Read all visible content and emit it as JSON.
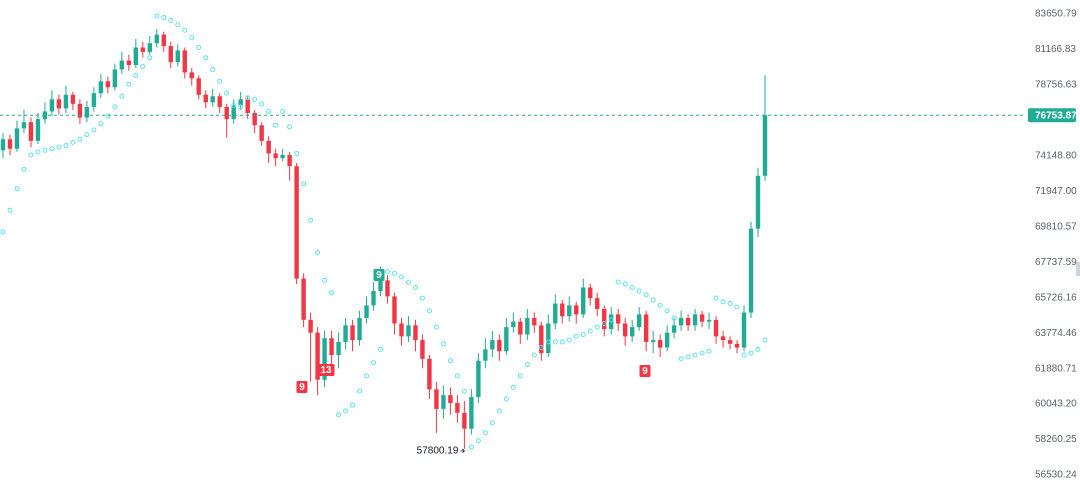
{
  "chart_data": {
    "type": "candlestick",
    "log_y": true,
    "grid": false,
    "up_color": "#22ab94",
    "down_color": "#f23645",
    "sar_color": "#5fe3ea",
    "ylim": [
      56052,
      84652
    ],
    "yticks": [
      83650.79,
      81166.83,
      78756.63,
      {
        "value": 74148.8,
        "label": "74148.80"
      },
      {
        "value": 71947,
        "label": "71947.00"
      },
      69810.57,
      67737.59,
      65726.16,
      63774.46,
      61880.71,
      {
        "value": 60043.2,
        "label": "60043.20"
      },
      58260.25,
      56530.24
    ],
    "open": [
      74500,
      75200,
      74600,
      75900,
      76300,
      75100,
      76500,
      77000,
      77800,
      77200,
      78100,
      77500,
      76600,
      77300,
      78200,
      79000,
      78600,
      79800,
      80400,
      80100,
      81300,
      81000,
      81600,
      82200,
      81400,
      80300,
      81100,
      79600,
      79200,
      78100,
      77600,
      78000,
      77300,
      76500,
      77400,
      77800,
      76900,
      76100,
      75100,
      74300,
      74000,
      74200,
      73500,
      66800,
      64500,
      63800,
      61300,
      63500,
      62600,
      63300,
      64200,
      63400,
      64600,
      65300,
      66100,
      66700,
      65800,
      64300,
      63600,
      64200,
      63400,
      62400,
      60800,
      59800,
      60500,
      60100,
      59600,
      58800,
      60400,
      62300,
      62900,
      63400,
      62800,
      64100,
      64400,
      63700,
      64600,
      64200,
      62700,
      64300,
      65400,
      64700,
      65300,
      64800,
      66300,
      65700,
      65100,
      64000,
      64800,
      64300,
      63600,
      64100,
      64800,
      63300,
      63400,
      63000,
      63800,
      64200,
      64600,
      64200,
      64800,
      64400,
      64500,
      63600,
      63400,
      63200,
      63000,
      64900,
      69700,
      72900
    ],
    "high": [
      75600,
      75500,
      76400,
      77100,
      76600,
      76900,
      77600,
      78400,
      78100,
      78700,
      78300,
      77800,
      77700,
      78600,
      79500,
      79300,
      80200,
      81000,
      80800,
      81900,
      81700,
      82100,
      82600,
      82400,
      81700,
      81500,
      81300,
      79900,
      79400,
      78400,
      78500,
      78200,
      77500,
      77800,
      78300,
      78000,
      77100,
      76300,
      75400,
      74600,
      74600,
      74400,
      73700,
      67100,
      64900,
      64100,
      63900,
      63900,
      63800,
      64600,
      64500,
      65000,
      65800,
      66600,
      67500,
      67000,
      66000,
      64600,
      64700,
      64500,
      63700,
      62600,
      61200,
      61000,
      60900,
      60500,
      60200,
      60800,
      62700,
      63500,
      63900,
      63700,
      64600,
      64900,
      64600,
      65100,
      64900,
      64400,
      64800,
      65900,
      65600,
      65800,
      65500,
      66800,
      66500,
      66000,
      65300,
      65200,
      65100,
      64600,
      64500,
      65200,
      65000,
      63900,
      63700,
      64200,
      64600,
      65000,
      64800,
      65100,
      65000,
      64900,
      64700,
      63900,
      63600,
      63400,
      65300,
      70100,
      73400,
      79400
    ],
    "low": [
      74000,
      74200,
      74400,
      75600,
      74700,
      74900,
      76200,
      76700,
      76800,
      76900,
      77100,
      76200,
      76300,
      77000,
      77900,
      78200,
      78400,
      79500,
      79700,
      79900,
      80600,
      80800,
      81300,
      81000,
      79900,
      80000,
      79200,
      78700,
      77800,
      77200,
      77300,
      76900,
      75300,
      76200,
      77100,
      76500,
      75600,
      74800,
      73700,
      73500,
      73800,
      72600,
      66500,
      64100,
      61200,
      60500,
      60900,
      62000,
      61900,
      62900,
      62800,
      63100,
      64300,
      65000,
      65800,
      65400,
      63700,
      63100,
      63300,
      62800,
      61900,
      60300,
      58600,
      59300,
      59500,
      59100,
      57800.19,
      58500,
      60100,
      61900,
      62500,
      62300,
      62600,
      63800,
      63200,
      63400,
      63800,
      62300,
      62500,
      64000,
      64300,
      64400,
      64300,
      64600,
      65300,
      64700,
      63600,
      63700,
      63900,
      63100,
      63300,
      63900,
      62800,
      62700,
      62500,
      62800,
      63500,
      63900,
      63900,
      63900,
      64100,
      64000,
      63200,
      63000,
      62900,
      62700,
      62800,
      64600,
      69200,
      72600
    ],
    "close": [
      75200,
      74600,
      75900,
      76300,
      75100,
      76500,
      77000,
      77800,
      77200,
      78100,
      77500,
      76600,
      77300,
      78200,
      79000,
      78600,
      79800,
      80400,
      80100,
      81300,
      81000,
      81600,
      82200,
      81400,
      80300,
      81100,
      79600,
      79200,
      78100,
      77600,
      78000,
      77300,
      76500,
      77400,
      77800,
      76900,
      76100,
      75100,
      74300,
      74000,
      74200,
      73500,
      66800,
      64500,
      63800,
      61300,
      63500,
      62600,
      63300,
      64200,
      63400,
      64600,
      65300,
      66100,
      66700,
      65800,
      64300,
      63600,
      64200,
      63400,
      62400,
      60800,
      59800,
      60500,
      60100,
      59600,
      58800,
      60400,
      62300,
      62900,
      63400,
      62800,
      64100,
      64400,
      63700,
      64600,
      64200,
      62700,
      64300,
      65400,
      64700,
      65300,
      64800,
      66300,
      65700,
      65100,
      64000,
      64800,
      64300,
      63600,
      64100,
      64800,
      63300,
      63400,
      63000,
      63800,
      64200,
      64600,
      64200,
      64800,
      64400,
      64500,
      63600,
      63400,
      63200,
      63000,
      64900,
      69700,
      72900,
      76753.87
    ],
    "sar": [
      69500,
      70800,
      72100,
      73300,
      74200,
      74400,
      74500,
      74600,
      74700,
      74800,
      75000,
      75200,
      75500,
      75800,
      76200,
      76700,
      77300,
      78000,
      78800,
      79400,
      80000,
      80600,
      83500,
      83400,
      83200,
      82900,
      82500,
      82000,
      81300,
      80600,
      79800,
      79000,
      78200,
      77400,
      77300,
      77900,
      77800,
      77500,
      77000,
      76100,
      77000,
      76000,
      74300,
      72400,
      70200,
      68300,
      66700,
      66000,
      59500,
      59700,
      60000,
      60700,
      61500,
      62200,
      62900,
      67200,
      67100,
      66900,
      66600,
      66300,
      65700,
      65000,
      64100,
      63200,
      62300,
      61500,
      60700,
      57900,
      58200,
      58600,
      59100,
      59700,
      60300,
      60900,
      61500,
      62100,
      62600,
      63000,
      63300,
      63300,
      63300,
      63400,
      63600,
      63700,
      63900,
      64100,
      64300,
      64500,
      66600,
      66500,
      66300,
      66100,
      65900,
      65600,
      65300,
      65000,
      64600,
      62400,
      62500,
      62600,
      62700,
      62800,
      65700,
      65500,
      65400,
      65200,
      62600,
      62700,
      62900,
      63400
    ],
    "markers": [
      {
        "text": "9",
        "color": "#f23645"
      },
      {
        "text": "13",
        "color": "#f23645"
      },
      {
        "text": "9",
        "color": "#22ab94"
      },
      {
        "text": "9",
        "color": "#f23645"
      }
    ]
  }
}
